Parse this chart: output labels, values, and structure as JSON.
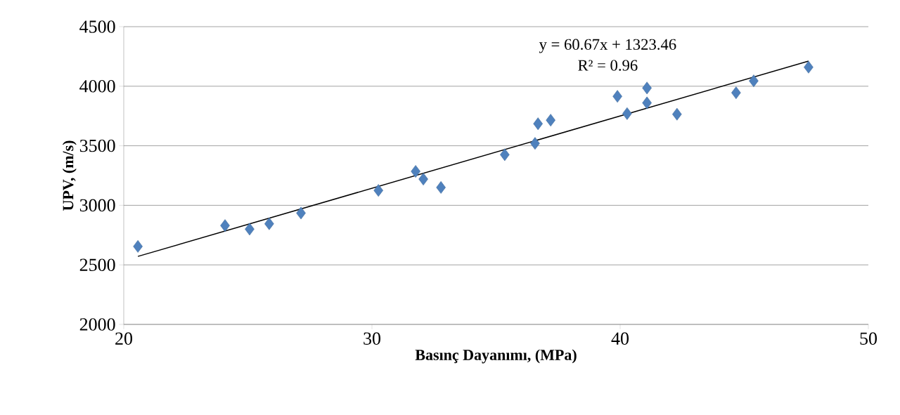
{
  "chart_data": {
    "type": "scatter",
    "xlabel": "Basınç Dayanımı, (MPa)",
    "ylabel": "UPV, (m/s)",
    "annotations": [
      "y = 60.67x + 1323.46",
      "R² = 0.96"
    ],
    "series": [
      {
        "color": "#4f81bd",
        "marker": "diamond",
        "x": [
          20.57,
          24.08,
          25.07,
          25.86,
          27.14,
          30.26,
          31.76,
          32.07,
          32.78,
          35.35,
          36.57,
          36.69,
          37.2,
          39.89,
          40.28,
          41.08,
          41.08,
          42.29,
          44.67,
          45.38,
          47.59
        ],
        "values": [
          2655,
          2830,
          2800,
          2845,
          2935,
          3125,
          3285,
          3220,
          3150,
          3425,
          3520,
          3685,
          3715,
          3915,
          3770,
          3985,
          3860,
          3765,
          3945,
          4045,
          4160
        ]
      },
      {
        "type": "line",
        "color": "#000000",
        "marker": "none",
        "x": [
          20.57,
          47.59
        ],
        "values": [
          2571,
          4211
        ]
      }
    ],
    "xlim": [
      20,
      50
    ],
    "xticks": [
      20,
      30,
      40,
      50
    ],
    "ylim": [
      2000,
      4500
    ],
    "yticks": [
      2000,
      2500,
      3000,
      3500,
      4000,
      4500
    ],
    "grid": "y"
  }
}
